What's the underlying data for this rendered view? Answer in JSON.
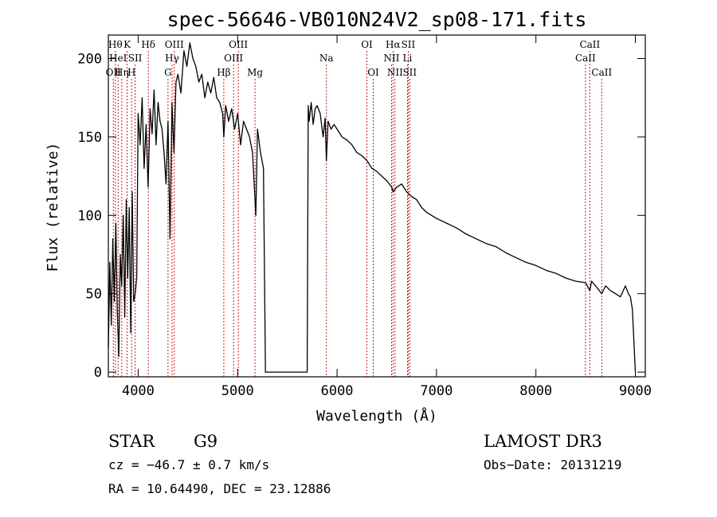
{
  "chart_data": {
    "type": "line",
    "title": "spec-56646-VB010N24V2_sp08-171.fits",
    "xlabel": "Wavelength (Å)",
    "ylabel": "Flux (relative)",
    "xlim": [
      3700,
      9100
    ],
    "ylim": [
      -3,
      215
    ],
    "xticks": [
      {
        "value": 4000,
        "label": "4000"
      },
      {
        "value": 5000,
        "label": "5000"
      },
      {
        "value": 6000,
        "label": "6000"
      },
      {
        "value": 7000,
        "label": "7000"
      },
      {
        "value": 8000,
        "label": "8000"
      },
      {
        "value": 9000,
        "label": "9000"
      }
    ],
    "yticks": [
      {
        "value": 0,
        "label": "0"
      },
      {
        "value": 50,
        "label": "50"
      },
      {
        "value": 100,
        "label": "100"
      },
      {
        "value": 150,
        "label": "150"
      },
      {
        "value": 200,
        "label": "200"
      }
    ],
    "spectrum_color": "#000000",
    "line_marker_color": "#cc0000",
    "series": [
      {
        "name": "flux",
        "x": [
          3700,
          3715,
          3730,
          3745,
          3760,
          3775,
          3790,
          3805,
          3820,
          3835,
          3850,
          3865,
          3880,
          3895,
          3910,
          3925,
          3940,
          3955,
          3970,
          3985,
          4000,
          4020,
          4040,
          4060,
          4080,
          4100,
          4120,
          4140,
          4160,
          4180,
          4200,
          4220,
          4240,
          4260,
          4280,
          4300,
          4320,
          4340,
          4360,
          4380,
          4400,
          4430,
          4460,
          4490,
          4520,
          4550,
          4580,
          4610,
          4640,
          4670,
          4700,
          4730,
          4760,
          4790,
          4820,
          4850,
          4861,
          4880,
          4910,
          4940,
          4970,
          5000,
          5030,
          5060,
          5090,
          5120,
          5150,
          5183,
          5200,
          5230,
          5260,
          5280,
          5290,
          5300,
          5400,
          5500,
          5600,
          5700,
          5710,
          5720,
          5740,
          5760,
          5780,
          5800,
          5830,
          5860,
          5880,
          5893,
          5910,
          5940,
          5970,
          6000,
          6050,
          6100,
          6150,
          6200,
          6250,
          6300,
          6350,
          6400,
          6450,
          6500,
          6550,
          6563,
          6600,
          6650,
          6700,
          6750,
          6800,
          6850,
          6900,
          6950,
          7000,
          7100,
          7200,
          7300,
          7400,
          7500,
          7600,
          7700,
          7800,
          7900,
          8000,
          8100,
          8200,
          8300,
          8400,
          8500,
          8542,
          8560,
          8600,
          8662,
          8700,
          8750,
          8800,
          8850,
          8900,
          8930,
          8950,
          8970,
          9000
        ],
        "y": [
          15,
          70,
          30,
          85,
          45,
          95,
          40,
          10,
          75,
          55,
          100,
          35,
          110,
          60,
          105,
          25,
          115,
          45,
          50,
          60,
          165,
          145,
          175,
          130,
          158,
          118,
          168,
          152,
          180,
          145,
          172,
          160,
          155,
          140,
          120,
          160,
          85,
          172,
          140,
          185,
          190,
          178,
          205,
          195,
          210,
          200,
          195,
          185,
          190,
          175,
          185,
          178,
          188,
          175,
          172,
          165,
          150,
          170,
          160,
          168,
          155,
          165,
          145,
          160,
          155,
          150,
          140,
          100,
          155,
          140,
          130,
          0,
          0,
          0,
          0,
          0,
          0,
          0,
          170,
          160,
          172,
          158,
          168,
          170,
          165,
          150,
          162,
          135,
          160,
          155,
          158,
          155,
          150,
          148,
          145,
          140,
          138,
          135,
          130,
          128,
          125,
          122,
          118,
          115,
          118,
          120,
          115,
          112,
          110,
          105,
          102,
          100,
          98,
          95,
          92,
          88,
          85,
          82,
          80,
          76,
          73,
          70,
          68,
          65,
          63,
          60,
          58,
          57,
          52,
          58,
          55,
          50,
          55,
          52,
          50,
          48,
          55,
          50,
          48,
          40,
          0
        ]
      }
    ],
    "lines": [
      {
        "wl": 3750,
        "label": "OII",
        "row": 3
      },
      {
        "wl": 3771,
        "label": "Hθ",
        "row": 1
      },
      {
        "wl": 3798,
        "label": "HeI",
        "row": 2
      },
      {
        "wl": 3835,
        "label": "Hη",
        "row": 3
      },
      {
        "wl": 3889,
        "label": "K",
        "row": 1
      },
      {
        "wl": 3934,
        "label": "H",
        "row": 3
      },
      {
        "wl": 3969,
        "label": "SII",
        "row": 2
      },
      {
        "wl": 4102,
        "label": "Hδ",
        "row": 1
      },
      {
        "wl": 4300,
        "label": "G",
        "row": 3
      },
      {
        "wl": 4341,
        "label": "Hγ",
        "row": 2
      },
      {
        "wl": 4363,
        "label": "OIII",
        "row": 1
      },
      {
        "wl": 4861,
        "label": "Hβ",
        "row": 3
      },
      {
        "wl": 4959,
        "label": "OIII",
        "row": 2
      },
      {
        "wl": 5007,
        "label": "OIII",
        "row": 1
      },
      {
        "wl": 5175,
        "label": "Mg",
        "row": 3
      },
      {
        "wl": 5893,
        "label": "Na",
        "row": 2
      },
      {
        "wl": 6300,
        "label": "OI",
        "row": 1
      },
      {
        "wl": 6364,
        "label": "OI",
        "row": 3
      },
      {
        "wl": 6548,
        "label": "NII",
        "row": 2
      },
      {
        "wl": 6563,
        "label": "Hα",
        "row": 1
      },
      {
        "wl": 6583,
        "label": "NII",
        "row": 3
      },
      {
        "wl": 6708,
        "label": "Li",
        "row": 2
      },
      {
        "wl": 6716,
        "label": "SII",
        "row": 1
      },
      {
        "wl": 6731,
        "label": "SII",
        "row": 3
      },
      {
        "wl": 8498,
        "label": "CaII",
        "row": 2
      },
      {
        "wl": 8542,
        "label": "CaII",
        "row": 1
      },
      {
        "wl": 8662,
        "label": "CaII",
        "row": 3
      }
    ]
  },
  "info": {
    "object_class": "STAR",
    "subclass": "G9",
    "survey": "LAMOST DR3",
    "cz": "cz = −46.7 ± 0.7 km/s",
    "obs_date": "Obs−Date: 20131219",
    "coords": "RA =  10.64490, DEC =  23.12886"
  }
}
